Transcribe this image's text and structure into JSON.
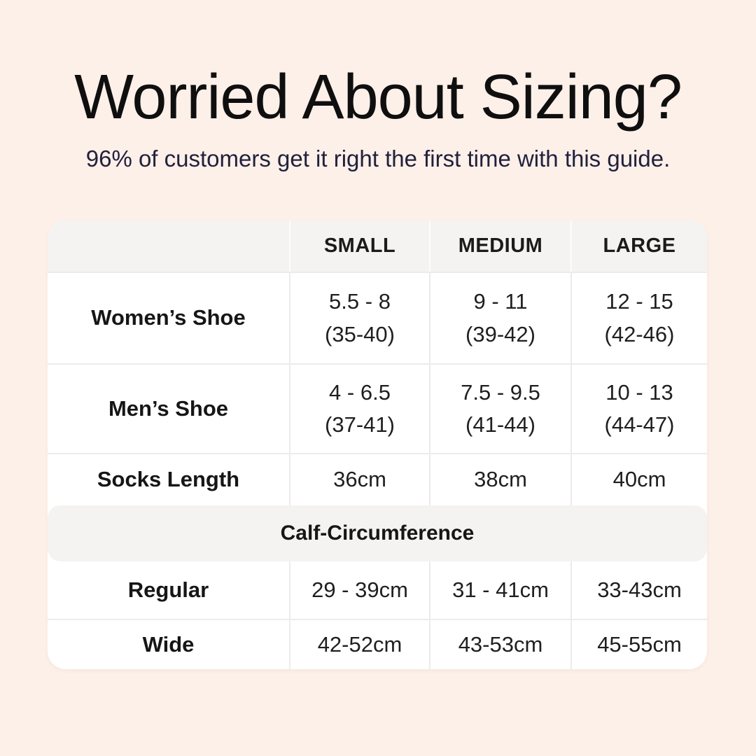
{
  "page": {
    "title": "Worried About Sizing?",
    "subtitle": "96% of customers get it right the first time with this guide.",
    "colors": {
      "background": "#fdf0e9",
      "title_text": "#0f0f0f",
      "subtitle_text": "#21213c",
      "table_background": "#ffffff",
      "header_background": "#f4f3f1",
      "divider": "#edecea",
      "body_text": "#1f1f1f"
    }
  },
  "table": {
    "headers": [
      "",
      "SMALL",
      "MEDIUM",
      "LARGE"
    ],
    "rows": [
      {
        "label": "Women’s Shoe",
        "small": {
          "line1": "5.5 - 8",
          "line2": "(35-40)"
        },
        "medium": {
          "line1": "9 - 11",
          "line2": "(39-42)"
        },
        "large": {
          "line1": "12 - 15",
          "line2": "(42-46)"
        }
      },
      {
        "label": "Men’s Shoe",
        "small": {
          "line1": "4 - 6.5",
          "line2": "(37-41)"
        },
        "medium": {
          "line1": "7.5 - 9.5",
          "line2": "(41-44)"
        },
        "large": {
          "line1": "10 - 13",
          "line2": "(44-47)"
        }
      },
      {
        "label": "Socks Length",
        "small": {
          "line1": "36cm"
        },
        "medium": {
          "line1": "38cm"
        },
        "large": {
          "line1": "40cm"
        }
      }
    ],
    "section_header": "Calf-Circumference",
    "calf_rows": [
      {
        "label": "Regular",
        "small": {
          "line1": "29 - 39cm"
        },
        "medium": {
          "line1": "31 - 41cm"
        },
        "large": {
          "line1": "33-43cm"
        }
      },
      {
        "label": "Wide",
        "small": {
          "line1": "42-52cm"
        },
        "medium": {
          "line1": "43-53cm"
        },
        "large": {
          "line1": "45-55cm"
        }
      }
    ]
  }
}
